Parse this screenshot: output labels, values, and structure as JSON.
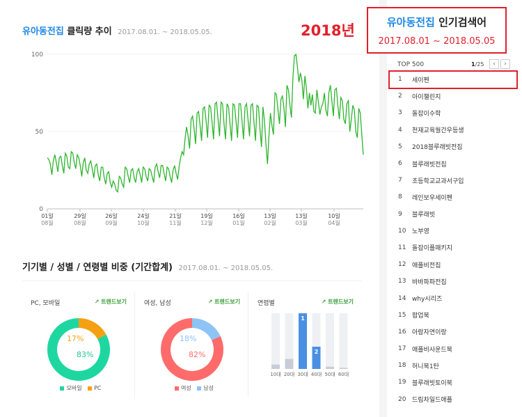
{
  "header": {
    "brand": "유아동전집",
    "title_rest": "클릭량 추이",
    "period": "2017.08.01. ~ 2018.05.05.",
    "year_badge": "2018년"
  },
  "chart_data": [
    {
      "type": "line",
      "title": "유아동전집 클릭량 추이",
      "ylim": [
        0,
        100
      ],
      "y_ticks": [
        "100",
        "50",
        "0"
      ],
      "x_ticks": [
        {
          "day": "01일",
          "month": "08월"
        },
        {
          "day": "29일",
          "month": "08월"
        },
        {
          "day": "26일",
          "month": "09월"
        },
        {
          "day": "24일",
          "month": "10월"
        },
        {
          "day": "21일",
          "month": "11월"
        },
        {
          "day": "19일",
          "month": "12월"
        },
        {
          "day": "16일",
          "month": "01월"
        },
        {
          "day": "13일",
          "month": "02월"
        },
        {
          "day": "13일",
          "month": "03월"
        },
        {
          "day": "10일",
          "month": "04월"
        }
      ],
      "series": [
        {
          "color": "#2cb52c",
          "values": [
            33,
            32,
            29,
            22,
            31,
            35,
            30,
            24,
            33,
            34,
            28,
            23,
            36,
            34,
            27,
            26,
            37,
            36,
            30,
            26,
            35,
            33,
            28,
            21,
            30,
            33,
            25,
            23,
            29,
            31,
            26,
            20,
            28,
            29,
            22,
            18,
            27,
            27,
            20,
            16,
            23,
            24,
            17,
            14,
            18,
            16,
            12,
            11,
            21,
            20,
            16,
            14,
            27,
            26,
            21,
            17,
            25,
            26,
            20,
            17,
            24,
            26,
            22,
            17,
            27,
            26,
            21,
            18,
            26,
            25,
            21,
            17,
            27,
            29,
            24,
            20,
            28,
            28,
            23,
            18,
            27,
            26,
            21,
            17,
            25,
            28,
            23,
            19,
            27,
            33,
            37,
            35,
            46,
            53,
            47,
            39,
            58,
            60,
            52,
            42,
            62,
            63,
            54,
            44,
            65,
            66,
            57,
            46,
            67,
            66,
            56,
            45,
            68,
            69,
            58,
            47,
            69,
            68,
            55,
            45,
            68,
            66,
            55,
            44,
            68,
            67,
            57,
            46,
            68,
            68,
            57,
            45,
            66,
            68,
            58,
            47,
            67,
            68,
            56,
            44,
            67,
            66,
            52,
            40,
            66,
            57,
            42,
            29,
            47,
            62,
            54,
            48,
            75,
            74,
            64,
            55,
            71,
            73,
            65,
            53,
            80,
            77,
            67,
            59,
            85,
            99,
            100,
            92,
            82,
            88,
            83,
            71,
            86,
            78,
            65,
            75,
            67,
            74,
            63,
            62,
            77,
            69,
            61,
            66,
            68,
            75,
            64,
            60,
            75,
            80,
            70,
            60,
            77,
            78,
            67,
            58,
            72,
            70,
            58,
            55,
            68,
            70,
            50,
            58,
            67,
            64,
            50,
            46,
            65,
            62,
            48,
            35
          ]
        }
      ]
    },
    {
      "type": "pie",
      "title": "PC, 모바일",
      "slices": [
        {
          "label": "모바일",
          "value": 83,
          "color": "#1ed7a0"
        },
        {
          "label": "PC",
          "value": 17,
          "color": "#f5a013"
        }
      ]
    },
    {
      "type": "pie",
      "title": "여성, 남성",
      "slices": [
        {
          "label": "여성",
          "value": 82,
          "color": "#ff6b6b"
        },
        {
          "label": "남성",
          "value": 18,
          "color": "#8ec3f5"
        }
      ]
    },
    {
      "type": "bar",
      "title": "연령별",
      "categories": [
        "10대",
        "20대",
        "30대",
        "40대",
        "50대",
        "60대"
      ],
      "values": [
        8,
        18,
        100,
        40,
        4,
        2
      ],
      "ranks": [
        "",
        "",
        "1",
        "2",
        "",
        ""
      ],
      "highlight_color": "#4a90e2",
      "base_color": "#c8ccd8"
    }
  ],
  "demo": {
    "title": "기기별 / 성별 / 연령별 비중 (기간합계)",
    "period": "2017.08.01. ~ 2018.05.05.",
    "trend_label": "트렌드보기",
    "device": {
      "label": "PC, 모바일",
      "mobile_pct": "83%",
      "pc_pct": "17%",
      "legend": [
        "모바일",
        "PC"
      ]
    },
    "gender": {
      "label": "여성, 남성",
      "female_pct": "82%",
      "male_pct": "18%",
      "legend": [
        "여성",
        "남성"
      ]
    },
    "age": {
      "label": "연령별"
    }
  },
  "sidebar": {
    "box_brand": "유아동전집",
    "box_title_rest": "인기검색어",
    "box_period": "2017.08.01 ~ 2018.05.05",
    "top_label": "TOP 500",
    "page_current": "1",
    "page_total": "/25",
    "prev_icon": "‹",
    "next_icon": "›",
    "items": [
      {
        "rank": "1",
        "label": "세이펜"
      },
      {
        "rank": "2",
        "label": "아이챌린지"
      },
      {
        "rank": "3",
        "label": "돌잡이수학"
      },
      {
        "rank": "4",
        "label": "천재교육월간우등생"
      },
      {
        "rank": "5",
        "label": "2018블루래빗전집"
      },
      {
        "rank": "6",
        "label": "블루래빗전집"
      },
      {
        "rank": "7",
        "label": "초등학교교과서구입"
      },
      {
        "rank": "8",
        "label": "레인보우세이펜"
      },
      {
        "rank": "9",
        "label": "블루래빗"
      },
      {
        "rank": "10",
        "label": "노부영"
      },
      {
        "rank": "11",
        "label": "돌잡이플패키지"
      },
      {
        "rank": "12",
        "label": "애플비전집"
      },
      {
        "rank": "13",
        "label": "바바파파전집"
      },
      {
        "rank": "14",
        "label": "why시리즈"
      },
      {
        "rank": "15",
        "label": "팝업북"
      },
      {
        "rank": "16",
        "label": "아람자연이랑"
      },
      {
        "rank": "17",
        "label": "애플비사운드북"
      },
      {
        "rank": "18",
        "label": "허니북1탄"
      },
      {
        "rank": "19",
        "label": "블루래빗토이북"
      },
      {
        "rank": "20",
        "label": "드림차일드애플"
      }
    ]
  }
}
